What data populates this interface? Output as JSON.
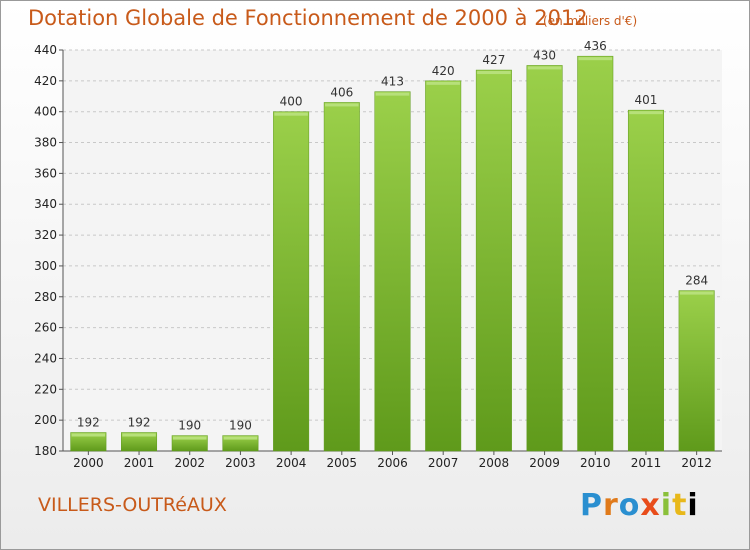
{
  "chart_data": {
    "type": "bar",
    "title": "Dotation Globale de Fonctionnement de 2000 à 2012",
    "unit_note": "(en milliers d'€)",
    "subtitle": "VILLERS-OUTRéAUX",
    "categories": [
      "2000",
      "2001",
      "2002",
      "2003",
      "2004",
      "2005",
      "2006",
      "2007",
      "2008",
      "2009",
      "2010",
      "2011",
      "2012"
    ],
    "values": [
      192,
      192,
      190,
      190,
      400,
      406,
      413,
      420,
      427,
      430,
      436,
      401,
      284
    ],
    "value_labels": [
      "192",
      "192",
      "190",
      "190",
      "400",
      "406",
      "413",
      "420",
      "427",
      "430",
      "436",
      "401",
      "284"
    ],
    "ylim": [
      180,
      440
    ],
    "yticks": [
      "180",
      "200",
      "220",
      "240",
      "260",
      "280",
      "300",
      "320",
      "340",
      "360",
      "380",
      "400",
      "420",
      "440"
    ],
    "xlabel": "",
    "ylabel": "",
    "grid": true,
    "bar_color": "#7fbf2e"
  },
  "branding": {
    "logo_letters": [
      "P",
      "r",
      "o",
      "x",
      "i",
      "t",
      "i"
    ]
  }
}
